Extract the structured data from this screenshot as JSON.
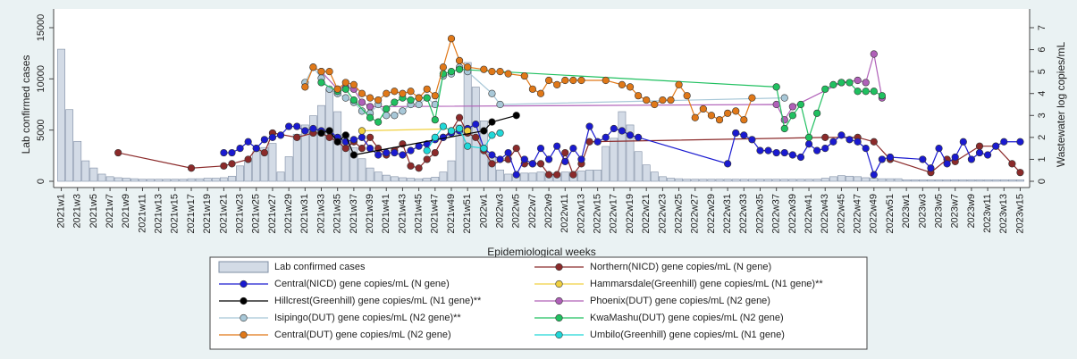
{
  "chart_data": {
    "type": "combo",
    "ylabel": "Lab confirmed cases",
    "y2label": "Wastewater log copies/mL",
    "xlabel": "Epidemiological weeks",
    "ylim": [
      0,
      15000
    ],
    "yticks": [
      0,
      5000,
      10000,
      15000
    ],
    "y2lim": [
      0,
      7
    ],
    "y2ticks": [
      0,
      1,
      2,
      3,
      4,
      5,
      6,
      7
    ],
    "categories": [
      "2021w1",
      null,
      "2021w3",
      null,
      "2021w5",
      null,
      "2021w7",
      null,
      "2021w9",
      null,
      "2021w11",
      null,
      "2021w13",
      null,
      "2021w15",
      null,
      "2021w17",
      null,
      "2021w19",
      null,
      "2021w21",
      null,
      "2021w23",
      null,
      "2021w25",
      null,
      "2021w27",
      null,
      "2021w29",
      null,
      "2021w31",
      null,
      "2021w33",
      null,
      "2021w35",
      null,
      "2021w37",
      null,
      "2021w39",
      null,
      "2021w41",
      null,
      "2021w43",
      null,
      "2021w45",
      null,
      "2021w47",
      null,
      "2021w49",
      null,
      "2021w51",
      null,
      "2022w1",
      null,
      "2022w3",
      null,
      "2022w5",
      null,
      "2022w7",
      null,
      "2022w9",
      null,
      "2022w11",
      null,
      "2022w13",
      null,
      "2022w15",
      null,
      "2022w17",
      null,
      "2022w19",
      null,
      "2022w21",
      null,
      "2022w23",
      null,
      "2022w25",
      null,
      "2022w27",
      null,
      "2022w29",
      null,
      "2022w31",
      null,
      "2022w33",
      null,
      "2022w35",
      null,
      "2022w37",
      null,
      "2022w39",
      null,
      "2022w41",
      null,
      "2022w43",
      null,
      "2022w45",
      null,
      "2022w47",
      null,
      "2022w49",
      null,
      "2022w51",
      null,
      "2023w1",
      null,
      "2023w3",
      null,
      "2023w5",
      null,
      "2023w7",
      null,
      "2023w9",
      null,
      "2023w11",
      null,
      "2023w13",
      null,
      "2023w15"
    ],
    "series": [
      {
        "name": "Lab confirmed cases",
        "type": "bar",
        "color": "#d3dbe6",
        "values": [
          12900,
          7000,
          3900,
          2000,
          1300,
          700,
          450,
          350,
          300,
          250,
          200,
          200,
          200,
          200,
          200,
          200,
          250,
          250,
          300,
          300,
          350,
          500,
          1500,
          2000,
          2900,
          3300,
          3700,
          900,
          2400,
          4600,
          5500,
          6400,
          7400,
          9000,
          6800,
          4600,
          3300,
          2200,
          1300,
          900,
          600,
          450,
          350,
          300,
          250,
          300,
          400,
          900,
          2000,
          5500,
          11600,
          9200,
          5900,
          2400,
          1100,
          700,
          700,
          800,
          800,
          900,
          800,
          800,
          900,
          900,
          1000,
          1100,
          1100,
          3400,
          4200,
          6800,
          5500,
          2900,
          1600,
          900,
          450,
          300,
          250,
          200,
          200,
          200,
          200,
          200,
          200,
          200,
          200,
          200,
          200,
          200,
          200,
          200,
          200,
          200,
          200,
          200,
          300,
          450,
          550,
          500,
          450,
          350,
          300,
          250,
          250,
          250,
          150,
          150,
          150,
          150,
          150,
          150,
          150,
          150,
          150,
          150,
          150,
          150,
          150,
          150,
          150
        ]
      },
      {
        "name": "Northern(NICD) gene copies/mL (N gene)",
        "type": "line",
        "axis": "y2",
        "color": "#8b2a2a",
        "x": [
          "2021w8",
          "2021w17",
          "2021w21",
          "2021w22",
          "2021w24",
          "2021w25",
          "2021w26",
          "2021w27",
          "2021w30",
          "2021w32",
          "2021w33",
          "2021w34",
          "2021w35",
          "2021w36",
          "2021w37",
          "2021w38",
          "2021w39",
          "2021w40",
          "2021w41",
          "2021w42",
          "2021w43",
          "2021w44",
          "2021w45",
          "2021w46",
          "2021w47",
          "2021w48",
          "2021w49",
          "2021w50",
          "2021w51",
          "2021w52",
          "2022w1",
          "2022w2",
          "2022w4",
          "2022w5",
          "2022w6",
          "2022w7",
          "2022w8",
          "2022w9",
          "2022w10",
          "2022w11",
          "2022w12",
          "2022w13",
          "2022w14",
          "2022w43",
          "2022w47",
          "2022w49",
          "2022w51",
          "2023w4",
          "2023w6",
          "2023w7",
          "2023w10",
          "2023w12",
          "2023w14",
          "2023w15"
        ],
        "values": [
          1.3,
          0.6,
          0.7,
          0.8,
          1.0,
          1.5,
          1.3,
          2.2,
          2.0,
          2.2,
          2.2,
          2.0,
          1.8,
          1.5,
          1.8,
          1.5,
          2.0,
          1.5,
          1.2,
          1.4,
          1.7,
          0.7,
          0.6,
          1.0,
          1.3,
          2.0,
          2.3,
          2.9,
          2.2,
          2.0,
          1.4,
          0.8,
          1.0,
          1.5,
          0.8,
          0.8,
          0.8,
          0.3,
          0.3,
          1.3,
          0.3,
          0.8,
          1.8,
          2.0,
          2.0,
          1.8,
          1.0,
          0.4,
          1.0,
          0.9,
          1.6,
          1.6,
          0.8,
          0.4
        ]
      },
      {
        "name": "Central(NICD) gene copies/mL (N gene)",
        "type": "line",
        "axis": "y2",
        "color": "#1a1ad0",
        "x": [
          "2021w21",
          "2021w22",
          "2021w23",
          "2021w24",
          "2021w25",
          "2021w26",
          "2021w27",
          "2021w28",
          "2021w29",
          "2021w30",
          "2021w31",
          "2021w32",
          "2021w33",
          "2021w34",
          "2021w35",
          "2021w36",
          "2021w37",
          "2021w38",
          "2021w39",
          "2021w40",
          "2021w41",
          "2021w42",
          "2021w43",
          "2021w44",
          "2021w45",
          "2021w46",
          "2021w47",
          "2021w48",
          "2021w49",
          "2021w50",
          "2021w51",
          "2021w52",
          "2022w1",
          "2022w2",
          "2022w3",
          "2022w4",
          "2022w5",
          "2022w6",
          "2022w7",
          "2022w8",
          "2022w9",
          "2022w10",
          "2022w11",
          "2022w12",
          "2022w13",
          "2022w14",
          "2022w15",
          "2022w16",
          "2022w17",
          "2022w18",
          "2022w19",
          "2022w20",
          "2022w31",
          "2022w32",
          "2022w33",
          "2022w34",
          "2022w35",
          "2022w36",
          "2022w37",
          "2022w38",
          "2022w39",
          "2022w40",
          "2022w41",
          "2022w42",
          "2022w43",
          "2022w44",
          "2022w45",
          "2022w46",
          "2022w47",
          "2022w48",
          "2022w49",
          "2022w50",
          "2022w51",
          "2023w3",
          "2023w4",
          "2023w5",
          "2023w6",
          "2023w7",
          "2023w8",
          "2023w9",
          "2023w10",
          "2023w11",
          "2023w12",
          "2023w13",
          "2023w15"
        ],
        "values": [
          1.3,
          1.3,
          1.5,
          1.8,
          1.5,
          1.9,
          2.0,
          2.1,
          2.5,
          2.5,
          2.3,
          2.4,
          2.3,
          2.3,
          2.0,
          1.8,
          1.9,
          2.0,
          1.5,
          1.2,
          1.3,
          1.3,
          1.2,
          1.4,
          1.6,
          1.7,
          1.9,
          2.0,
          2.2,
          2.3,
          2.4,
          2.6,
          1.5,
          1.2,
          1.0,
          1.3,
          0.3,
          1.0,
          0.8,
          1.5,
          1.0,
          1.6,
          0.9,
          1.5,
          1.0,
          2.5,
          1.8,
          2.0,
          2.4,
          2.3,
          2.1,
          2.0,
          0.8,
          2.2,
          2.1,
          1.9,
          1.4,
          1.4,
          1.3,
          1.3,
          1.2,
          1.1,
          1.7,
          1.4,
          1.5,
          1.8,
          2.1,
          1.9,
          1.8,
          1.5,
          0.3,
          1.0,
          1.1,
          1.0,
          0.6,
          1.5,
          0.8,
          1.1,
          1.8,
          1.0,
          1.3,
          1.2,
          1.6,
          1.8,
          1.8
        ]
      },
      {
        "name": "Hammarsdale(Greenhill) gene copies/mL (N1 gene)**",
        "type": "line",
        "axis": "y2",
        "color": "#f0d040",
        "x": [
          "2021w38",
          "2021w50",
          "2021w51"
        ],
        "values": [
          2.3,
          2.4,
          2.3
        ]
      },
      {
        "name": "Hillcrest(Greenhill) gene copies/mL (N1 gene)**",
        "type": "line",
        "axis": "y2",
        "color": "#000000",
        "x": [
          "2021w33",
          "2021w34",
          "2021w35",
          "2021w36",
          "2021w37",
          "2022w1",
          "2022w2",
          "2022w5"
        ],
        "values": [
          2.2,
          2.3,
          1.8,
          2.1,
          1.2,
          2.3,
          2.7,
          3.0
        ]
      },
      {
        "name": "Phoenix(DUT) gene copies/mL (N2 gene)",
        "type": "line",
        "axis": "y2",
        "color": "#b060b8",
        "x": [
          "2021w33",
          "2021w35",
          "2021w36",
          "2021w37",
          "2021w38",
          "2021w39",
          "2022w37",
          "2022w38",
          "2022w39",
          "2022w45",
          "2022w47",
          "2022w48",
          "2022w49",
          "2022w50"
        ],
        "values": [
          5.0,
          4.2,
          4.3,
          4.2,
          3.6,
          3.4,
          3.5,
          2.8,
          3.4,
          4.5,
          4.6,
          4.5,
          5.8,
          3.8
        ]
      },
      {
        "name": "Isipingo(DUT) gene copies/mL (N2 gene)**",
        "type": "line",
        "axis": "y2",
        "color": "#a8c8d8",
        "x": [
          "2021w31",
          "2021w32",
          "2021w33",
          "2021w34",
          "2021w35",
          "2021w36",
          "2021w37",
          "2021w38",
          "2021w39",
          "2021w40",
          "2021w41",
          "2021w42",
          "2021w43",
          "2021w44",
          "2021w45",
          "2021w46",
          "2021w47",
          "2021w48",
          "2021w49",
          "2021w50",
          "2021w51",
          "2022w2",
          "2022w3",
          "2022w38"
        ],
        "values": [
          4.5,
          5.2,
          4.7,
          4.2,
          4.0,
          3.8,
          3.6,
          3.2,
          3.1,
          3.5,
          3.0,
          3.0,
          3.2,
          3.5,
          3.5,
          3.8,
          3.5,
          4.8,
          4.9,
          5.2,
          5.0,
          4.0,
          3.5,
          3.8
        ]
      },
      {
        "name": "KwaMashu(DUT) gene copies/mL (N2 gene)",
        "type": "line",
        "axis": "y2",
        "color": "#20c060",
        "x": [
          "2021w33",
          "2021w35",
          "2021w36",
          "2021w37",
          "2021w39",
          "2021w40",
          "2021w41",
          "2021w42",
          "2021w43",
          "2021w44",
          "2021w45",
          "2021w46",
          "2021w47",
          "2021w48",
          "2021w49",
          "2021w50",
          "2022w37",
          "2022w38",
          "2022w39",
          "2022w40",
          "2022w41",
          "2022w42",
          "2022w43",
          "2022w44",
          "2022w45",
          "2022w46",
          "2022w47",
          "2022w48",
          "2022w49",
          "2022w50"
        ],
        "values": [
          4.5,
          4.1,
          4.2,
          3.7,
          2.9,
          2.7,
          3.3,
          3.6,
          3.8,
          3.7,
          3.8,
          3.8,
          2.8,
          4.9,
          5.0,
          5.1,
          4.3,
          2.4,
          3.0,
          3.5,
          2.0,
          3.1,
          4.2,
          4.4,
          4.5,
          4.5,
          4.1,
          4.1,
          4.1,
          3.9
        ]
      },
      {
        "name": "Central(DUT) gene copies/mL (N2 gene)",
        "type": "line",
        "axis": "y2",
        "color": "#e07818",
        "x": [
          "2021w31",
          "2021w32",
          "2021w33",
          "2021w34",
          "2021w35",
          "2021w36",
          "2021w37",
          "2021w38",
          "2021w39",
          "2021w40",
          "2021w41",
          "2021w42",
          "2021w43",
          "2021w44",
          "2021w45",
          "2021w46",
          "2021w47",
          "2021w48",
          "2021w49",
          "2021w50",
          "2021w51",
          "2022w1",
          "2022w2",
          "2022w3",
          "2022w4",
          "2022w6",
          "2022w7",
          "2022w8",
          "2022w9",
          "2022w10",
          "2022w11",
          "2022w12",
          "2022w13",
          "2022w16",
          "2022w18",
          "2022w19",
          "2022w20",
          "2022w21",
          "2022w22",
          "2022w23",
          "2022w24",
          "2022w25",
          "2022w26",
          "2022w27",
          "2022w28",
          "2022w29",
          "2022w30",
          "2022w31",
          "2022w32",
          "2022w33",
          "2022w34"
        ],
        "values": [
          4.3,
          5.2,
          5.0,
          5.0,
          4.2,
          4.5,
          4.4,
          4.0,
          3.8,
          3.7,
          4.0,
          4.1,
          4.0,
          4.1,
          3.8,
          4.2,
          3.9,
          5.2,
          6.5,
          5.5,
          5.2,
          5.1,
          5.0,
          5.0,
          4.9,
          4.8,
          4.2,
          4.0,
          4.6,
          4.4,
          4.6,
          4.6,
          4.6,
          4.6,
          4.4,
          4.3,
          3.9,
          3.7,
          3.5,
          3.7,
          3.7,
          4.4,
          3.9,
          2.9,
          3.3,
          3.0,
          2.8,
          3.1,
          3.2,
          2.8,
          3.8
        ]
      },
      {
        "name": "Umbilo(Greenhill) gene copies/mL (N1 gene)",
        "type": "line",
        "axis": "y2",
        "color": "#20d8d8",
        "x": [
          "2021w46",
          "2021w47",
          "2021w48",
          "2021w49",
          "2021w50",
          "2021w51",
          "2022w1",
          "2022w2",
          "2022w3"
        ],
        "values": [
          1.4,
          2.0,
          2.5,
          2.3,
          2.4,
          1.6,
          1.5,
          2.1,
          2.2
        ]
      }
    ]
  }
}
